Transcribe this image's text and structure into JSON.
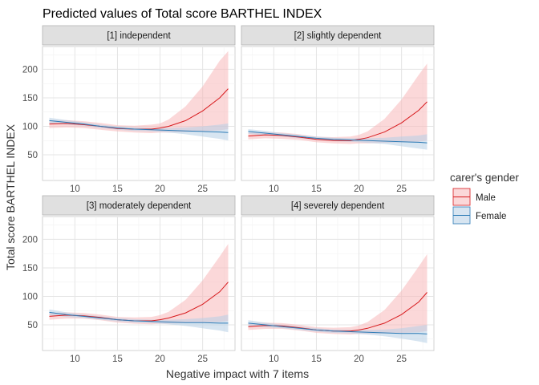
{
  "chart_data": {
    "type": "line",
    "title": "Predicted values of Total score BARTHEL INDEX",
    "xlabel": "Negative impact with 7 items",
    "ylabel": "Total score BARTHEL INDEX",
    "xlim": [
      6.2,
      28.8
    ],
    "ylim": [
      5,
      240
    ],
    "xticks": [
      10,
      15,
      20,
      25
    ],
    "yticks": [
      50,
      100,
      150,
      200
    ],
    "legend": {
      "title": "carer's gender",
      "position": "right",
      "entries": [
        {
          "name": "Male",
          "color": "#d7191c",
          "fill": "#f7b8b9"
        },
        {
          "name": "Female",
          "color": "#2c7bb6",
          "fill": "#b6cfe5"
        }
      ]
    },
    "facets": [
      {
        "label": "[1] independent",
        "series": [
          {
            "name": "Male",
            "x": [
              7,
              9,
              11,
              13,
              15,
              17,
              19,
              20,
              21,
              23,
              25,
              27,
              28
            ],
            "y": [
              104,
              105,
              103,
              100,
              96,
              95,
              95,
              97,
              100,
              110,
              127,
              150,
              166
            ],
            "lower": [
              97,
              98,
              97,
              94,
              91,
              89,
              88,
              89,
              89,
              90,
              91,
              93,
              95
            ],
            "upper": [
              111,
              111,
              109,
              106,
              102,
              101,
              103,
              105,
              112,
              135,
              170,
              215,
              232
            ]
          },
          {
            "name": "Female",
            "x": [
              7,
              9,
              11,
              13,
              15,
              17,
              19,
              21,
              23,
              25,
              27,
              28
            ],
            "y": [
              110,
              107,
              104,
              100,
              97,
              95,
              94,
              93,
              92,
              91,
              90,
              89
            ],
            "lower": [
              105,
              103,
              101,
              97,
              94,
              92,
              91,
              89,
              86,
              82,
              78,
              75
            ],
            "upper": [
              115,
              111,
              107,
              103,
              100,
              98,
              97,
              97,
              98,
              100,
              103,
              105
            ]
          }
        ]
      },
      {
        "label": "[2] slightly dependent",
        "series": [
          {
            "name": "Male",
            "x": [
              7,
              9,
              11,
              13,
              15,
              17,
              19,
              20,
              21,
              23,
              25,
              27,
              28
            ],
            "y": [
              83,
              85,
              84,
              81,
              77,
              75,
              75,
              77,
              80,
              90,
              106,
              128,
              143
            ],
            "lower": [
              77,
              79,
              78,
              76,
              72,
              70,
              69,
              70,
              70,
              71,
              72,
              73,
              75
            ],
            "upper": [
              89,
              90,
              89,
              86,
              82,
              81,
              82,
              85,
              91,
              113,
              147,
              190,
              210
            ]
          },
          {
            "name": "Female",
            "x": [
              7,
              9,
              11,
              13,
              15,
              17,
              19,
              21,
              23,
              25,
              27,
              28
            ],
            "y": [
              91,
              88,
              85,
              82,
              79,
              77,
              76,
              75,
              74,
              73,
              72,
              71
            ],
            "lower": [
              87,
              84,
              82,
              79,
              76,
              74,
              73,
              71,
              69,
              65,
              61,
              59
            ],
            "upper": [
              95,
              92,
              88,
              85,
              82,
              80,
              79,
              79,
              80,
              82,
              84,
              86
            ]
          }
        ]
      },
      {
        "label": "[3] moderately dependent",
        "series": [
          {
            "name": "Male",
            "x": [
              7,
              9,
              11,
              13,
              15,
              17,
              19,
              20,
              21,
              23,
              25,
              27,
              28
            ],
            "y": [
              65,
              67,
              66,
              63,
              59,
              57,
              57,
              59,
              62,
              71,
              86,
              108,
              125
            ],
            "lower": [
              59,
              61,
              61,
              58,
              54,
              52,
              51,
              52,
              52,
              53,
              54,
              55,
              57
            ],
            "upper": [
              71,
              72,
              71,
              68,
              64,
              63,
              64,
              67,
              73,
              94,
              128,
              170,
              192
            ]
          },
          {
            "name": "Female",
            "x": [
              7,
              9,
              11,
              13,
              15,
              17,
              19,
              21,
              23,
              25,
              27,
              28
            ],
            "y": [
              72,
              68,
              65,
              62,
              59,
              57,
              56,
              55,
              54,
              54,
              53,
              53
            ],
            "lower": [
              67,
              64,
              62,
              59,
              56,
              54,
              53,
              51,
              48,
              44,
              40,
              37
            ],
            "upper": [
              77,
              72,
              68,
              65,
              62,
              60,
              59,
              59,
              60,
              62,
              65,
              68
            ]
          }
        ]
      },
      {
        "label": "[4] severely dependent",
        "series": [
          {
            "name": "Male",
            "x": [
              7,
              9,
              11,
              13,
              15,
              17,
              19,
              20,
              21,
              23,
              25,
              27,
              28
            ],
            "y": [
              47,
              49,
              48,
              45,
              41,
              39,
              39,
              41,
              44,
              53,
              68,
              90,
              107
            ],
            "lower": [
              41,
              43,
              43,
              40,
              36,
              34,
              33,
              34,
              34,
              35,
              36,
              37,
              39
            ],
            "upper": [
              53,
              54,
              53,
              50,
              46,
              45,
              46,
              49,
              55,
              76,
              110,
              152,
              174
            ]
          },
          {
            "name": "Female",
            "x": [
              7,
              9,
              11,
              13,
              15,
              17,
              19,
              21,
              23,
              25,
              27,
              28
            ],
            "y": [
              53,
              50,
              47,
              44,
              41,
              39,
              38,
              37,
              36,
              35,
              35,
              34
            ],
            "lower": [
              48,
              46,
              44,
              41,
              38,
              36,
              35,
              33,
              30,
              26,
              21,
              18
            ],
            "upper": [
              58,
              54,
              50,
              47,
              44,
              42,
              41,
              41,
              42,
              44,
              48,
              50
            ]
          }
        ]
      }
    ]
  }
}
